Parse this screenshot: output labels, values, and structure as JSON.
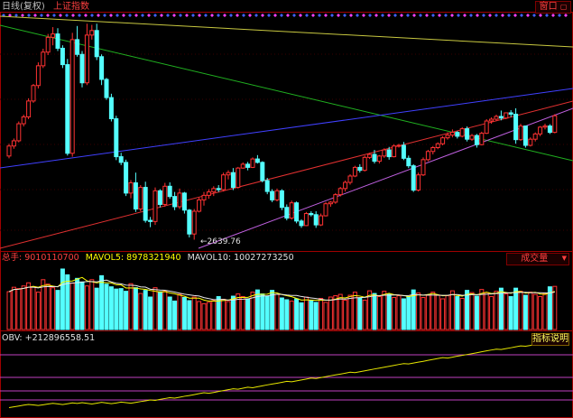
{
  "header": {
    "period": "日线(复权)",
    "index_name": "上证指数",
    "window_button": "窗口"
  },
  "price_panel": {
    "low_label": "2639.76",
    "candles": [
      [
        3008,
        3062,
        2998,
        3052
      ],
      [
        3052,
        3085,
        3040,
        3075
      ],
      [
        3075,
        3160,
        3068,
        3150
      ],
      [
        3150,
        3190,
        3138,
        3180
      ],
      [
        3180,
        3262,
        3170,
        3250
      ],
      [
        3250,
        3325,
        3242,
        3318
      ],
      [
        3318,
        3420,
        3305,
        3405
      ],
      [
        3405,
        3480,
        3395,
        3465
      ],
      [
        3465,
        3545,
        3452,
        3530
      ],
      [
        3530,
        3575,
        3495,
        3545
      ],
      [
        3545,
        3570,
        3470,
        3482
      ],
      [
        3482,
        3495,
        3395,
        3410
      ],
      [
        3410,
        3435,
        3010,
        3020
      ],
      [
        3020,
        3550,
        3005,
        3520
      ],
      [
        3520,
        3580,
        3445,
        3455
      ],
      [
        3455,
        3470,
        3310,
        3330
      ],
      [
        3330,
        3590,
        3320,
        3540
      ],
      [
        3540,
        3585,
        3520,
        3560
      ],
      [
        3560,
        3590,
        3430,
        3445
      ],
      [
        3445,
        3455,
        3320,
        3345
      ],
      [
        3345,
        3352,
        3255,
        3265
      ],
      [
        3265,
        3282,
        3160,
        3172
      ],
      [
        3172,
        3185,
        2990,
        3005
      ],
      [
        3005,
        3022,
        2968,
        2980
      ],
      [
        2980,
        2992,
        2832,
        2845
      ],
      [
        2845,
        2902,
        2822,
        2890
      ],
      [
        2890,
        2935,
        2762,
        2775
      ],
      [
        2775,
        2880,
        2765,
        2870
      ],
      [
        2870,
        2895,
        2715,
        2725
      ],
      [
        2725,
        2740,
        2695,
        2720
      ],
      [
        2720,
        2870,
        2705,
        2855
      ],
      [
        2855,
        2862,
        2782,
        2795
      ],
      [
        2795,
        2890,
        2785,
        2875
      ],
      [
        2875,
        2892,
        2820,
        2830
      ],
      [
        2830,
        2850,
        2770,
        2785
      ],
      [
        2785,
        2865,
        2775,
        2845
      ],
      [
        2845,
        2850,
        2755,
        2770
      ],
      [
        2770,
        2775,
        2650,
        2665
      ],
      [
        2665,
        2775,
        2640,
        2765
      ],
      [
        2765,
        2825,
        2760,
        2815
      ],
      [
        2815,
        2850,
        2790,
        2835
      ],
      [
        2835,
        2862,
        2820,
        2850
      ],
      [
        2850,
        2875,
        2832,
        2865
      ],
      [
        2865,
        2880,
        2850,
        2860
      ],
      [
        2860,
        2935,
        2852,
        2925
      ],
      [
        2925,
        2945,
        2905,
        2935
      ],
      [
        2935,
        2955,
        2858,
        2870
      ],
      [
        2870,
        2960,
        2865,
        2955
      ],
      [
        2955,
        2980,
        2952,
        2972
      ],
      [
        2972,
        2982,
        2945,
        2958
      ],
      [
        2958,
        3002,
        2955,
        2995
      ],
      [
        2995,
        3012,
        2975,
        2980
      ],
      [
        2980,
        2985,
        2892,
        2900
      ],
      [
        2900,
        2912,
        2840,
        2852
      ],
      [
        2852,
        2862,
        2805,
        2815
      ],
      [
        2815,
        2865,
        2808,
        2855
      ],
      [
        2855,
        2862,
        2770,
        2782
      ],
      [
        2782,
        2795,
        2725,
        2735
      ],
      [
        2735,
        2812,
        2728,
        2802
      ],
      [
        2802,
        2808,
        2712,
        2722
      ],
      [
        2722,
        2730,
        2692,
        2702
      ],
      [
        2702,
        2762,
        2700,
        2755
      ],
      [
        2755,
        2765,
        2742,
        2750
      ],
      [
        2750,
        2765,
        2692,
        2705
      ],
      [
        2705,
        2755,
        2700,
        2745
      ],
      [
        2745,
        2805,
        2742,
        2798
      ],
      [
        2798,
        2810,
        2785,
        2805
      ],
      [
        2805,
        2845,
        2798,
        2838
      ],
      [
        2838,
        2872,
        2830,
        2865
      ],
      [
        2865,
        2900,
        2852,
        2892
      ],
      [
        2892,
        2928,
        2882,
        2920
      ],
      [
        2920,
        2965,
        2915,
        2958
      ],
      [
        2958,
        2972,
        2935,
        2945
      ],
      [
        2945,
        3010,
        2940,
        3002
      ],
      [
        3002,
        3022,
        2995,
        3015
      ],
      [
        3015,
        3035,
        2975,
        2985
      ],
      [
        2985,
        3012,
        2975,
        3008
      ],
      [
        3008,
        3042,
        3000,
        3035
      ],
      [
        3035,
        3048,
        2992,
        3005
      ],
      [
        3005,
        3060,
        3002,
        3052
      ],
      [
        3052,
        3062,
        3045,
        3055
      ],
      [
        3055,
        3070,
        2990,
        2998
      ],
      [
        2998,
        3010,
        2955,
        2965
      ],
      [
        2965,
        2972,
        2850,
        2858
      ],
      [
        2858,
        2935,
        2852,
        2925
      ],
      [
        2925,
        3002,
        2920,
        2992
      ],
      [
        2992,
        3035,
        2985,
        3028
      ],
      [
        3028,
        3052,
        3015,
        3045
      ],
      [
        3045,
        3068,
        3038,
        3062
      ],
      [
        3062,
        3095,
        3055,
        3088
      ],
      [
        3088,
        3112,
        3080,
        3100
      ],
      [
        3100,
        3125,
        3090,
        3112
      ],
      [
        3112,
        3118,
        3085,
        3095
      ],
      [
        3095,
        3135,
        3090,
        3128
      ],
      [
        3128,
        3138,
        3072,
        3082
      ],
      [
        3082,
        3105,
        3075,
        3098
      ],
      [
        3098,
        3105,
        3045,
        3058
      ],
      [
        3058,
        3115,
        3055,
        3108
      ],
      [
        3108,
        3170,
        3105,
        3162
      ],
      [
        3162,
        3178,
        3150,
        3170
      ],
      [
        3170,
        3190,
        3162,
        3182
      ],
      [
        3182,
        3208,
        3165,
        3175
      ],
      [
        3175,
        3200,
        3170,
        3198
      ],
      [
        3198,
        3210,
        3180,
        3192
      ],
      [
        3192,
        3218,
        3062,
        3080
      ],
      [
        3080,
        3150,
        3075,
        3140
      ],
      [
        3140,
        3142,
        3045,
        3055
      ],
      [
        3055,
        3090,
        3050,
        3082
      ],
      [
        3082,
        3112,
        3072,
        3105
      ],
      [
        3105,
        3140,
        3095,
        3135
      ],
      [
        3135,
        3150,
        3125,
        3140
      ],
      [
        3140,
        3148,
        3105,
        3112
      ],
      [
        3112,
        3192,
        3108,
        3185
      ]
    ],
    "volumes": [
      8.5,
      9.5,
      9.2,
      9.8,
      10.5,
      9.6,
      8.4,
      11.2,
      10.2,
      9.4,
      8.8,
      13.6,
      12.3,
      10.4,
      11.5,
      10.7,
      9.8,
      11.2,
      9.3,
      12.1,
      10.2,
      9.6,
      9.1,
      9.2,
      8.6,
      10.3,
      9.4,
      8.1,
      8.8,
      7.3,
      9.4,
      8.5,
      8.6,
      7.3,
      6.4,
      7.9,
      7.2,
      6.5,
      7.3,
      6.3,
      5.8,
      6.1,
      6.5,
      7.4,
      6.8,
      6.3,
      7.5,
      8.0,
      7.4,
      6.9,
      8.4,
      8.9,
      8.0,
      7.5,
      8.8,
      7.9,
      7.1,
      6.7,
      6.4,
      6.9,
      6.0,
      7.3,
      6.5,
      6.1,
      7.0,
      6.1,
      7.3,
      7.6,
      7.9,
      6.6,
      7.7,
      8.4,
      7.0,
      6.6,
      8.7,
      8.1,
      7.4,
      8.6,
      7.9,
      7.2,
      7.6,
      6.9,
      7.4,
      8.9,
      8.2,
      7.2,
      7.7,
      8.4,
      7.7,
      6.9,
      7.6,
      8.7,
      7.4,
      7.0,
      8.8,
      8.3,
      7.5,
      9.0,
      8.3,
      7.4,
      8.6,
      9.3,
      8.0,
      7.4,
      9.3,
      8.6,
      7.7,
      8.4,
      7.9,
      7.4,
      8.1,
      9.6,
      9.7
    ],
    "obv": [
      0.5,
      1.3,
      2.1,
      3.0,
      3.7,
      3.2,
      2.6,
      3.3,
      4.1,
      4.8,
      4.2,
      3.6,
      4.4,
      5.3,
      4.7,
      5.5,
      4.8,
      4.1,
      4.9,
      5.8,
      5.2,
      4.5,
      5.2,
      6.1,
      5.5,
      4.9,
      5.7,
      6.6,
      7.4,
      8.3,
      7.8,
      8.8,
      9.7,
      10.6,
      10.1,
      11.0,
      12.0,
      12.8,
      13.7,
      14.7,
      15.6,
      15.0,
      15.9,
      16.9,
      17.8,
      18.7,
      19.6,
      19.2,
      20.2,
      21.2,
      20.7,
      21.7,
      22.6,
      23.6,
      24.5,
      25.3,
      26.2,
      27.2,
      26.8,
      27.7,
      28.6,
      29.5,
      30.5,
      30.1,
      31.0,
      31.9,
      32.9,
      33.8,
      34.6,
      35.5,
      36.5,
      36.1,
      37.0,
      37.9,
      38.8,
      39.8,
      40.7,
      41.6,
      42.5,
      43.4,
      44.4,
      45.3,
      44.9,
      45.8,
      46.7,
      47.6,
      48.6,
      49.5,
      50.4,
      51.3,
      50.9,
      51.8,
      52.8,
      53.6,
      54.5,
      55.4,
      56.3,
      57.3,
      58.2,
      59.1,
      60.0,
      59.6,
      60.5,
      61.4,
      62.4,
      63.3,
      62.9,
      63.8,
      64.7,
      65.6,
      66.5,
      65.9,
      66.8
    ]
  },
  "volume_panel": {
    "label_total": "总手: 9010110700",
    "label_mavol5": "MAVOL5: 8978321940",
    "label_mavol10": "MAVOL10: 10027273250",
    "button": "成交量",
    "dropdown_arrow": "▼"
  },
  "obv_panel": {
    "label": "OBV: +212896558.51",
    "button": "指标说明"
  },
  "colors": {
    "up": "#ff3232",
    "down": "#54ffff",
    "frame": "#a00000",
    "obv_line": "#e6e600",
    "guide": "#c040c0"
  },
  "icons": {
    "window_controls": "restore-icon"
  }
}
